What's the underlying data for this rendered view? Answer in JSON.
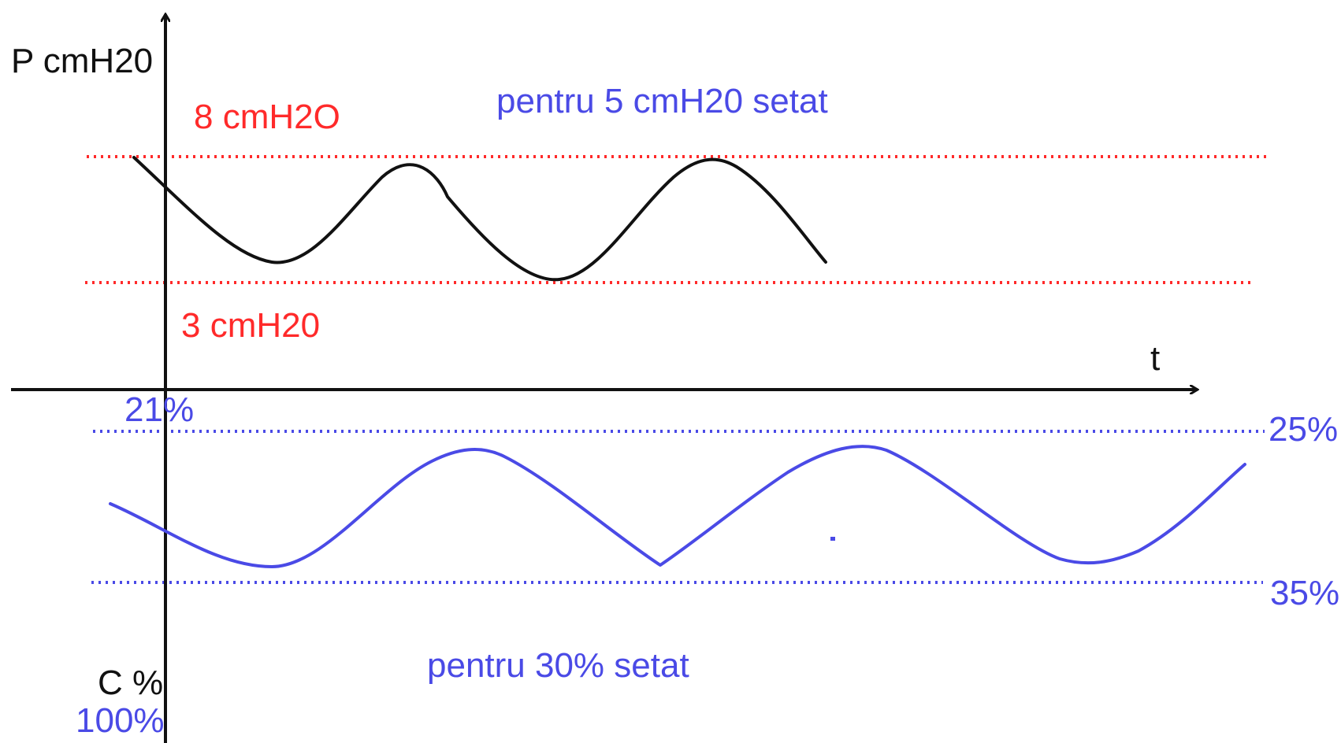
{
  "labels": {
    "y_axis_top": "P cmH20",
    "x_axis": "t",
    "y_axis_bottom": "C %",
    "bottom_value": "100%",
    "pressure_high": "8 cmH2O",
    "pressure_low": "3 cmH20",
    "pressure_setting": "pentru 5 cmH20 setat",
    "origin_conc": "21%",
    "conc_upper": "25%",
    "conc_lower": "35%",
    "conc_setting": "pentru 30% setat"
  },
  "colors": {
    "axis": "#111111",
    "pressure_limits": "#ff2a2a",
    "concentration": "#4a4ae6"
  }
}
